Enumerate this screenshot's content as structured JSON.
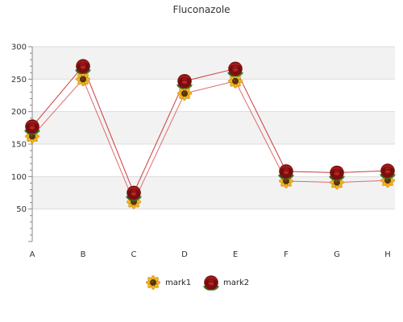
{
  "chart_data": {
    "type": "line",
    "title": "Fluconazole",
    "categories": [
      "A",
      "B",
      "C",
      "D",
      "E",
      "F",
      "G",
      "H"
    ],
    "ylim": [
      0,
      300
    ],
    "yticks": [
      50,
      100,
      150,
      200,
      250,
      300
    ],
    "grid": true,
    "legend": "bottom-center",
    "series": [
      {
        "name": "mark1",
        "marker": "sunflower-icon",
        "color": "#e06a6a",
        "values": [
          162,
          250,
          61,
          228,
          247,
          93,
          91,
          94
        ]
      },
      {
        "name": "mark2",
        "marker": "rose-icon",
        "color": "#cc3b3b",
        "values": [
          177,
          270,
          75,
          247,
          266,
          108,
          106,
          109
        ]
      }
    ]
  }
}
